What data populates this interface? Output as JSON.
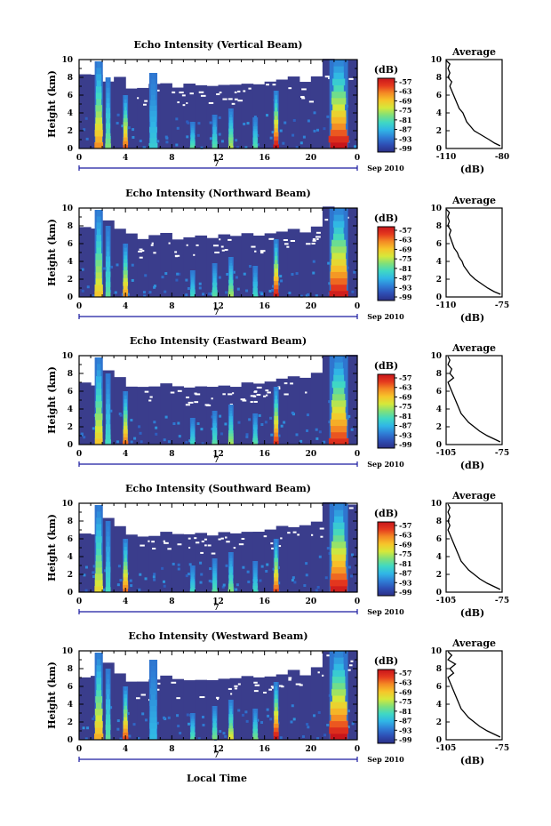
{
  "figure": {
    "xlabel": "Local Time",
    "date_label": "Sep 2010",
    "day_label": "7",
    "colorbar_unit": "(dB)",
    "colorbar_ticks": [
      "-57",
      "-63",
      "-69",
      "-75",
      "-81",
      "-87",
      "-93",
      "-99"
    ],
    "colors": {
      "background_echo": "#3a3d8c",
      "no_data": "#ffffff",
      "colormap": [
        "#2b2f86",
        "#2e4fb5",
        "#2f7fd6",
        "#30b6e6",
        "#3fd8c4",
        "#7fe07a",
        "#d6e83a",
        "#f6c52a",
        "#f48a24",
        "#e5391e",
        "#c8151b"
      ]
    }
  },
  "chart_data": [
    {
      "type": "heatmap",
      "title": "Echo Intensity (Vertical Beam)",
      "ylabel": "Height (km)",
      "xlim": [
        0,
        24
      ],
      "ylim": [
        0,
        10
      ],
      "x_ticks": [
        "0",
        "4",
        "8",
        "12",
        "16",
        "20",
        "0"
      ],
      "y_ticks": [
        "0",
        "2",
        "4",
        "6",
        "8",
        "10"
      ],
      "clim": [
        -99,
        -57
      ],
      "colorbar_ticks": [
        "-57",
        "-63",
        "-69",
        "-75",
        "-81",
        "-87",
        "-93",
        "-99"
      ],
      "clear_air_top_km": [
        8.2,
        8.3,
        7.4,
        8.0,
        6.8,
        6.9,
        7.2,
        7.5,
        7.0,
        7.1,
        7.2,
        7.0,
        7.3,
        7.0,
        7.2,
        7.4,
        7.6,
        7.8,
        8.0,
        7.4,
        8.0,
        10,
        10,
        10,
        8.5
      ],
      "convective_events": [
        {
          "time": 1.7,
          "top_km": 9.8,
          "peak": -66
        },
        {
          "time": 2.5,
          "top_km": 8.0,
          "peak": -78
        },
        {
          "time": 4.0,
          "top_km": 6.0,
          "peak": -63
        },
        {
          "time": 6.4,
          "top_km": 8.5,
          "peak": -84
        },
        {
          "time": 9.8,
          "top_km": 3.0,
          "peak": -80
        },
        {
          "time": 11.7,
          "top_km": 3.8,
          "peak": -80
        },
        {
          "time": 13.1,
          "top_km": 4.5,
          "peak": -75
        },
        {
          "time": 15.2,
          "top_km": 3.5,
          "peak": -80
        },
        {
          "time": 17.0,
          "top_km": 6.5,
          "peak": -57
        },
        {
          "time": 22.4,
          "top_km": 10,
          "peak": -57
        }
      ],
      "average_profile": {
        "title": "Average",
        "xlabel": "(dB)",
        "x_ticks": [
          "-110",
          "-80"
        ],
        "xlim": [
          -110,
          -80
        ],
        "y_ticks": [
          "0",
          "2",
          "4",
          "6",
          "8",
          "10"
        ],
        "height_km": [
          0.3,
          0.6,
          1.0,
          1.5,
          2.0,
          2.5,
          3.0,
          3.5,
          4.0,
          4.5,
          5.0,
          5.5,
          6.0,
          6.5,
          7.0,
          7.5,
          8.0,
          8.5,
          9.0,
          9.5,
          9.9
        ],
        "db": [
          -81,
          -84,
          -87,
          -91,
          -95,
          -97,
          -99,
          -100,
          -101,
          -103,
          -104,
          -105,
          -106,
          -107,
          -108,
          -107,
          -109,
          -108,
          -109,
          -108,
          -110
        ]
      }
    },
    {
      "type": "heatmap",
      "title": "Echo Intensity (Northward Beam)",
      "ylabel": "Height (km)",
      "xlim": [
        0,
        24
      ],
      "ylim": [
        0,
        10
      ],
      "x_ticks": [
        "0",
        "4",
        "8",
        "12",
        "16",
        "20",
        "0"
      ],
      "y_ticks": [
        "0",
        "2",
        "4",
        "6",
        "8",
        "10"
      ],
      "clim": [
        -99,
        -57
      ],
      "colorbar_ticks": [
        "-57",
        "-63",
        "-69",
        "-75",
        "-81",
        "-87",
        "-93",
        "-99"
      ],
      "clear_air_top_km": [
        8.0,
        7.8,
        8.5,
        7.6,
        7.0,
        6.6,
        6.8,
        7.2,
        6.6,
        6.7,
        6.8,
        6.6,
        6.9,
        6.8,
        7.0,
        7.1,
        7.3,
        7.5,
        7.7,
        7.4,
        8.0,
        10,
        10,
        10,
        8.5
      ],
      "convective_events": [
        {
          "time": 1.7,
          "top_km": 9.8,
          "peak": -70
        },
        {
          "time": 2.5,
          "top_km": 8.0,
          "peak": -80
        },
        {
          "time": 4.0,
          "top_km": 6.0,
          "peak": -66
        },
        {
          "time": 9.8,
          "top_km": 3.0,
          "peak": -82
        },
        {
          "time": 11.7,
          "top_km": 3.8,
          "peak": -80
        },
        {
          "time": 13.1,
          "top_km": 4.5,
          "peak": -76
        },
        {
          "time": 15.2,
          "top_km": 3.5,
          "peak": -82
        },
        {
          "time": 17.0,
          "top_km": 6.5,
          "peak": -58
        },
        {
          "time": 22.4,
          "top_km": 10,
          "peak": -58
        }
      ],
      "average_profile": {
        "title": "Average",
        "xlabel": "(dB)",
        "x_ticks": [
          "-110",
          "-75"
        ],
        "xlim": [
          -110,
          -75
        ],
        "y_ticks": [
          "0",
          "2",
          "4",
          "6",
          "8",
          "10"
        ],
        "height_km": [
          0.3,
          0.6,
          1.0,
          1.5,
          2.0,
          2.5,
          3.0,
          3.5,
          4.0,
          4.5,
          5.0,
          5.5,
          6.0,
          6.5,
          7.0,
          7.5,
          8.0,
          8.5,
          9.0,
          9.5,
          9.9
        ],
        "db": [
          -76,
          -80,
          -84,
          -88,
          -92,
          -95,
          -97,
          -99,
          -100,
          -102,
          -103,
          -105,
          -106,
          -107,
          -108,
          -107,
          -109,
          -108,
          -109,
          -108,
          -110
        ]
      }
    },
    {
      "type": "heatmap",
      "title": "Echo Intensity (Eastward Beam)",
      "ylabel": "Height (km)",
      "xlim": [
        0,
        24
      ],
      "ylim": [
        0,
        10
      ],
      "x_ticks": [
        "0",
        "4",
        "8",
        "12",
        "16",
        "20",
        "0"
      ],
      "y_ticks": [
        "0",
        "2",
        "4",
        "6",
        "8",
        "10"
      ],
      "clim": [
        -99,
        -57
      ],
      "colorbar_ticks": [
        "-57",
        "-63",
        "-69",
        "-75",
        "-81",
        "-87",
        "-93",
        "-99"
      ],
      "clear_air_top_km": [
        7.0,
        6.8,
        8.5,
        7.6,
        6.5,
        6.4,
        6.6,
        7.0,
        6.5,
        6.6,
        6.6,
        6.5,
        6.7,
        6.6,
        6.8,
        7.0,
        7.1,
        7.3,
        7.5,
        7.4,
        8.0,
        10,
        10,
        10,
        8.5
      ],
      "convective_events": [
        {
          "time": 1.7,
          "top_km": 9.8,
          "peak": -70
        },
        {
          "time": 2.5,
          "top_km": 8.0,
          "peak": -82
        },
        {
          "time": 4.0,
          "top_km": 6.0,
          "peak": -64
        },
        {
          "time": 9.8,
          "top_km": 3.0,
          "peak": -82
        },
        {
          "time": 11.7,
          "top_km": 3.8,
          "peak": -80
        },
        {
          "time": 13.1,
          "top_km": 4.5,
          "peak": -76
        },
        {
          "time": 15.2,
          "top_km": 3.5,
          "peak": -80
        },
        {
          "time": 17.0,
          "top_km": 6.5,
          "peak": -60
        },
        {
          "time": 22.4,
          "top_km": 10,
          "peak": -60
        }
      ],
      "average_profile": {
        "title": "Average",
        "xlabel": "(dB)",
        "x_ticks": [
          "-105",
          "-75"
        ],
        "xlim": [
          -105,
          -75
        ],
        "y_ticks": [
          "0",
          "2",
          "4",
          "6",
          "8",
          "10"
        ],
        "height_km": [
          0.3,
          0.6,
          1.0,
          1.5,
          2.0,
          2.5,
          3.0,
          3.5,
          4.0,
          4.5,
          5.0,
          5.5,
          6.0,
          6.5,
          7.0,
          7.5,
          8.0,
          8.5,
          9.0,
          9.5,
          9.9
        ],
        "db": [
          -76,
          -79,
          -83,
          -87,
          -90,
          -93,
          -95,
          -97,
          -98,
          -99,
          -100,
          -101,
          -102,
          -103,
          -104,
          -101,
          -103,
          -102,
          -104,
          -103,
          -104
        ]
      }
    },
    {
      "type": "heatmap",
      "title": "Echo Intensity (Southward Beam)",
      "ylabel": "Height (km)",
      "xlim": [
        0,
        24
      ],
      "ylim": [
        0,
        10
      ],
      "x_ticks": [
        "0",
        "4",
        "8",
        "12",
        "16",
        "20",
        "0"
      ],
      "y_ticks": [
        "0",
        "2",
        "4",
        "6",
        "8",
        "10"
      ],
      "clim": [
        -99,
        -57
      ],
      "colorbar_ticks": [
        "-57",
        "-63",
        "-69",
        "-75",
        "-81",
        "-87",
        "-93",
        "-99"
      ],
      "clear_air_top_km": [
        6.5,
        6.4,
        8.5,
        7.6,
        6.4,
        6.3,
        6.5,
        6.8,
        6.4,
        6.5,
        6.5,
        6.4,
        6.6,
        6.5,
        6.7,
        6.9,
        7.0,
        7.3,
        7.5,
        7.4,
        8.0,
        10,
        10,
        10,
        8.0
      ],
      "convective_events": [
        {
          "time": 1.7,
          "top_km": 9.8,
          "peak": -72
        },
        {
          "time": 2.5,
          "top_km": 8.0,
          "peak": -82
        },
        {
          "time": 4.0,
          "top_km": 6.0,
          "peak": -64
        },
        {
          "time": 9.8,
          "top_km": 3.0,
          "peak": -82
        },
        {
          "time": 11.7,
          "top_km": 3.8,
          "peak": -80
        },
        {
          "time": 13.1,
          "top_km": 4.5,
          "peak": -78
        },
        {
          "time": 15.2,
          "top_km": 3.5,
          "peak": -82
        },
        {
          "time": 17.0,
          "top_km": 6.0,
          "peak": -62
        },
        {
          "time": 22.4,
          "top_km": 10,
          "peak": -58
        }
      ],
      "average_profile": {
        "title": "Average",
        "xlabel": "(dB)",
        "x_ticks": [
          "-105",
          "-75"
        ],
        "xlim": [
          -105,
          -75
        ],
        "y_ticks": [
          "0",
          "2",
          "4",
          "6",
          "8",
          "10"
        ],
        "height_km": [
          0.3,
          0.6,
          1.0,
          1.5,
          2.0,
          2.5,
          3.0,
          3.5,
          4.0,
          4.5,
          5.0,
          5.5,
          6.0,
          6.5,
          7.0,
          7.5,
          8.0,
          8.5,
          9.0,
          9.5,
          9.9
        ],
        "db": [
          -76,
          -79,
          -83,
          -87,
          -90,
          -93,
          -95,
          -97,
          -98,
          -99,
          -100,
          -101,
          -102,
          -103,
          -104,
          -103,
          -104,
          -103,
          -104,
          -103,
          -104
        ]
      }
    },
    {
      "type": "heatmap",
      "title": "Echo Intensity (Westward Beam)",
      "ylabel": "Height (km)",
      "xlim": [
        0,
        24
      ],
      "ylim": [
        0,
        10
      ],
      "x_ticks": [
        "0",
        "4",
        "8",
        "12",
        "16",
        "20",
        "0"
      ],
      "y_ticks": [
        "0",
        "2",
        "4",
        "6",
        "8",
        "10"
      ],
      "clim": [
        -99,
        -57
      ],
      "colorbar_ticks": [
        "-57",
        "-63",
        "-69",
        "-75",
        "-81",
        "-87",
        "-93",
        "-99"
      ],
      "clear_air_top_km": [
        7.2,
        7.0,
        8.5,
        7.6,
        6.7,
        6.6,
        6.8,
        7.2,
        6.8,
        6.8,
        6.9,
        6.7,
        6.9,
        6.8,
        7.0,
        7.1,
        7.3,
        7.5,
        7.7,
        7.4,
        8.0,
        10,
        10,
        10,
        8.5
      ],
      "convective_events": [
        {
          "time": 1.7,
          "top_km": 9.8,
          "peak": -68
        },
        {
          "time": 2.5,
          "top_km": 8.0,
          "peak": -80
        },
        {
          "time": 4.0,
          "top_km": 6.0,
          "peak": -62
        },
        {
          "time": 6.4,
          "top_km": 9.0,
          "peak": -86
        },
        {
          "time": 9.8,
          "top_km": 3.0,
          "peak": -80
        },
        {
          "time": 11.7,
          "top_km": 3.8,
          "peak": -78
        },
        {
          "time": 13.1,
          "top_km": 4.5,
          "peak": -72
        },
        {
          "time": 15.2,
          "top_km": 3.5,
          "peak": -78
        },
        {
          "time": 17.0,
          "top_km": 6.5,
          "peak": -57
        },
        {
          "time": 22.4,
          "top_km": 10,
          "peak": -57
        }
      ],
      "average_profile": {
        "title": "Average",
        "xlabel": "(dB)",
        "x_ticks": [
          "-105",
          "-75"
        ],
        "xlim": [
          -105,
          -75
        ],
        "y_ticks": [
          "0",
          "2",
          "4",
          "6",
          "8",
          "10"
        ],
        "height_km": [
          0.3,
          0.6,
          1.0,
          1.5,
          2.0,
          2.5,
          3.0,
          3.5,
          4.0,
          4.5,
          5.0,
          5.5,
          6.0,
          6.5,
          7.0,
          7.5,
          8.0,
          8.5,
          9.0,
          9.5,
          9.9
        ],
        "db": [
          -76,
          -79,
          -83,
          -87,
          -90,
          -93,
          -95,
          -97,
          -98,
          -99,
          -100,
          -101,
          -102,
          -103,
          -104,
          -101,
          -103,
          -100,
          -104,
          -102,
          -104
        ]
      }
    }
  ]
}
